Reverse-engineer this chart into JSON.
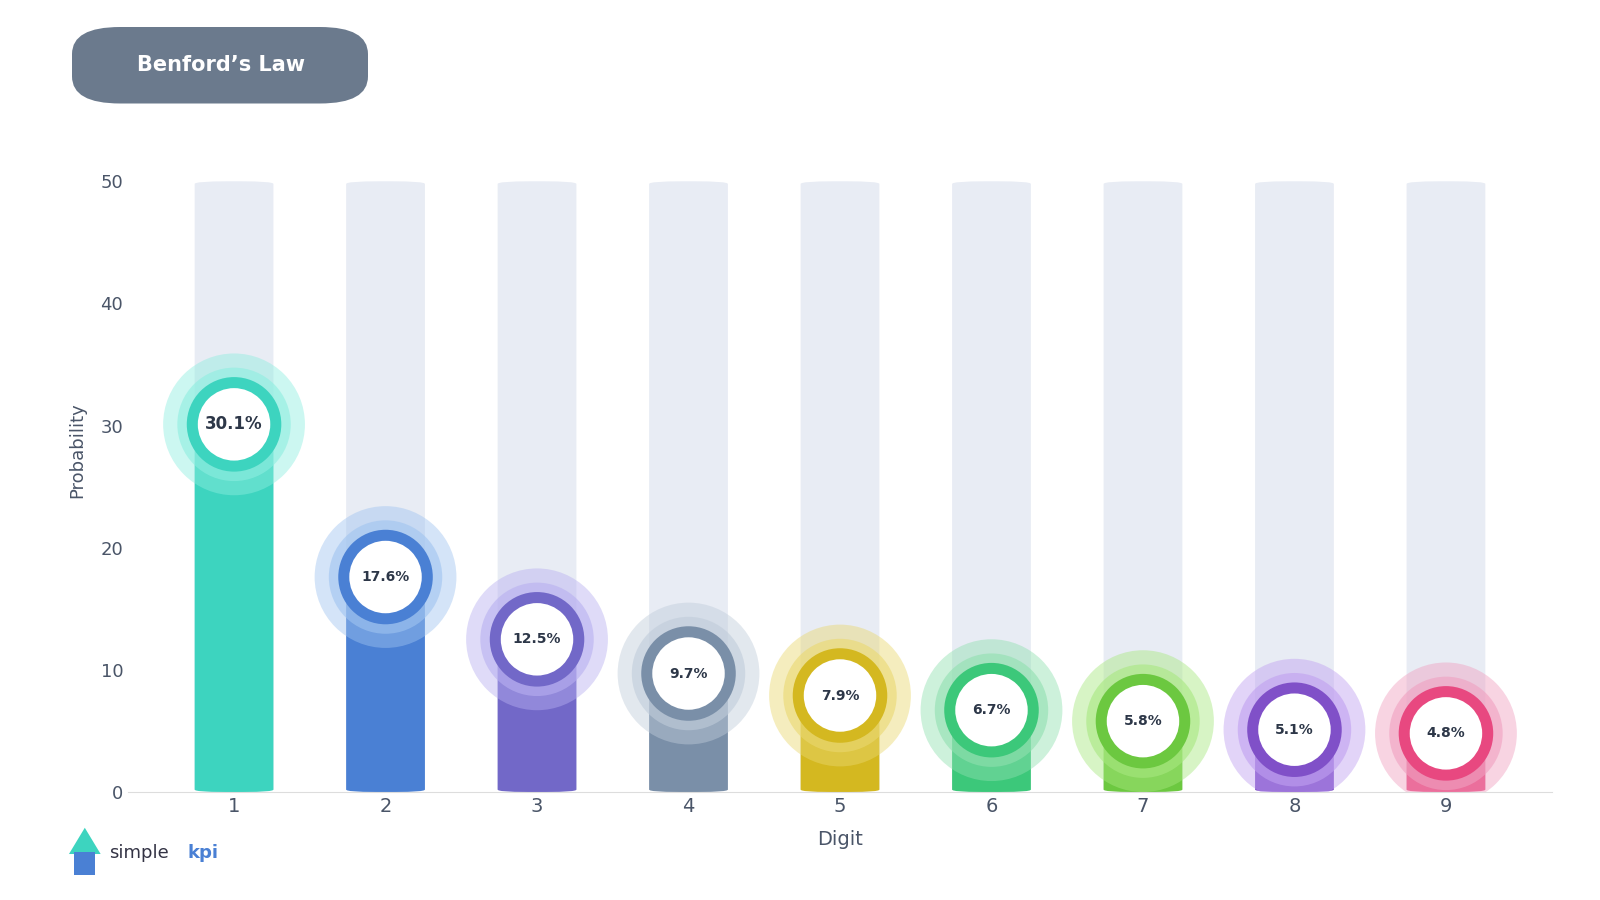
{
  "digits": [
    1,
    2,
    3,
    4,
    5,
    6,
    7,
    8,
    9
  ],
  "values": [
    30.1,
    17.6,
    12.5,
    9.7,
    7.9,
    6.7,
    5.8,
    5.1,
    4.8
  ],
  "labels": [
    "30.1%",
    "17.6%",
    "12.5%",
    "9.7%",
    "7.9%",
    "6.7%",
    "5.8%",
    "5.1%",
    "4.8%"
  ],
  "bar_colors": [
    "#3DD4BF",
    "#4A80D4",
    "#7268C8",
    "#7A8FA8",
    "#D4B820",
    "#3CC87A",
    "#6CC840",
    "#8050C8",
    "#E84880"
  ],
  "glow_colors": [
    "#8EEEE0",
    "#A0C4F0",
    "#B8B0F0",
    "#C0CCDA",
    "#EAD870",
    "#90E0B0",
    "#A8E880",
    "#C0A0F0",
    "#F0A0C0"
  ],
  "ring_colors": [
    "#3DD4BF",
    "#4A80D4",
    "#7268C8",
    "#7A8FA8",
    "#D4B820",
    "#3CC87A",
    "#6CC840",
    "#8050C8",
    "#E84880"
  ],
  "background_bar_color": "#E8ECF4",
  "title": "Benford’s Law",
  "title_bg_color": "#6B7A8D",
  "title_text_color": "#FFFFFF",
  "xlabel": "Digit",
  "ylabel": "Probability",
  "ylim": [
    0,
    56
  ],
  "yticks": [
    0,
    10,
    20,
    30,
    40,
    50
  ],
  "bg_color": "#FFFFFF",
  "bar_width": 0.52,
  "max_bar_height": 50,
  "label_color": "#2D3748"
}
